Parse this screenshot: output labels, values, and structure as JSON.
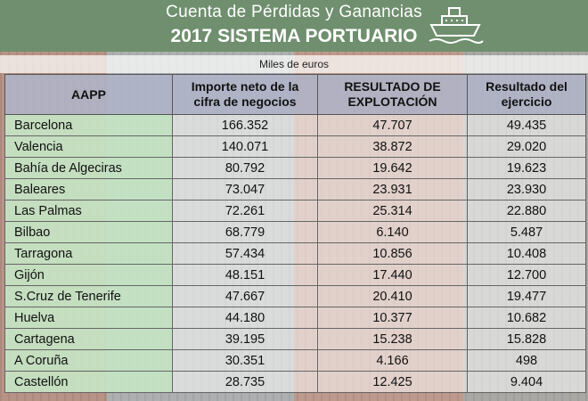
{
  "header": {
    "subtitle": "Cuenta de Pérdidas y Ganancias",
    "title": "2017 SISTEMA PORTUARIO",
    "icon": "ship-icon",
    "background_color": "#6f8f6e"
  },
  "units": "Miles de euros",
  "table": {
    "columns": [
      "AAPP",
      "Importe neto de la cifra de negocios",
      "RESULTADO DE EXPLOTACIÓN",
      "Resultado del ejercicio"
    ],
    "rows": [
      [
        "Barcelona",
        "166.352",
        "47.707",
        "49.435"
      ],
      [
        "Valencia",
        "140.071",
        "38.872",
        "29.020"
      ],
      [
        "Bahía de Algeciras",
        "80.792",
        "19.642",
        "19.623"
      ],
      [
        "Baleares",
        "73.047",
        "23.931",
        "23.930"
      ],
      [
        "Las Palmas",
        "72.261",
        "25.314",
        "22.880"
      ],
      [
        "Bilbao",
        "68.779",
        "6.140",
        "5.487"
      ],
      [
        "Tarragona",
        "57.434",
        "10.856",
        "10.408"
      ],
      [
        "Gijón",
        "48.151",
        "17.440",
        "12.700"
      ],
      [
        "S.Cruz de Tenerife",
        "47.667",
        "20.410",
        "19.477"
      ],
      [
        "Huelva",
        "44.180",
        "10.377",
        "10.682"
      ],
      [
        "Cartagena",
        "39.195",
        "15.238",
        "15.828"
      ],
      [
        "A Coruña",
        "30.351",
        "4.166",
        "498"
      ],
      [
        "Castellón",
        "28.735",
        "12.425",
        "9.404"
      ]
    ]
  }
}
